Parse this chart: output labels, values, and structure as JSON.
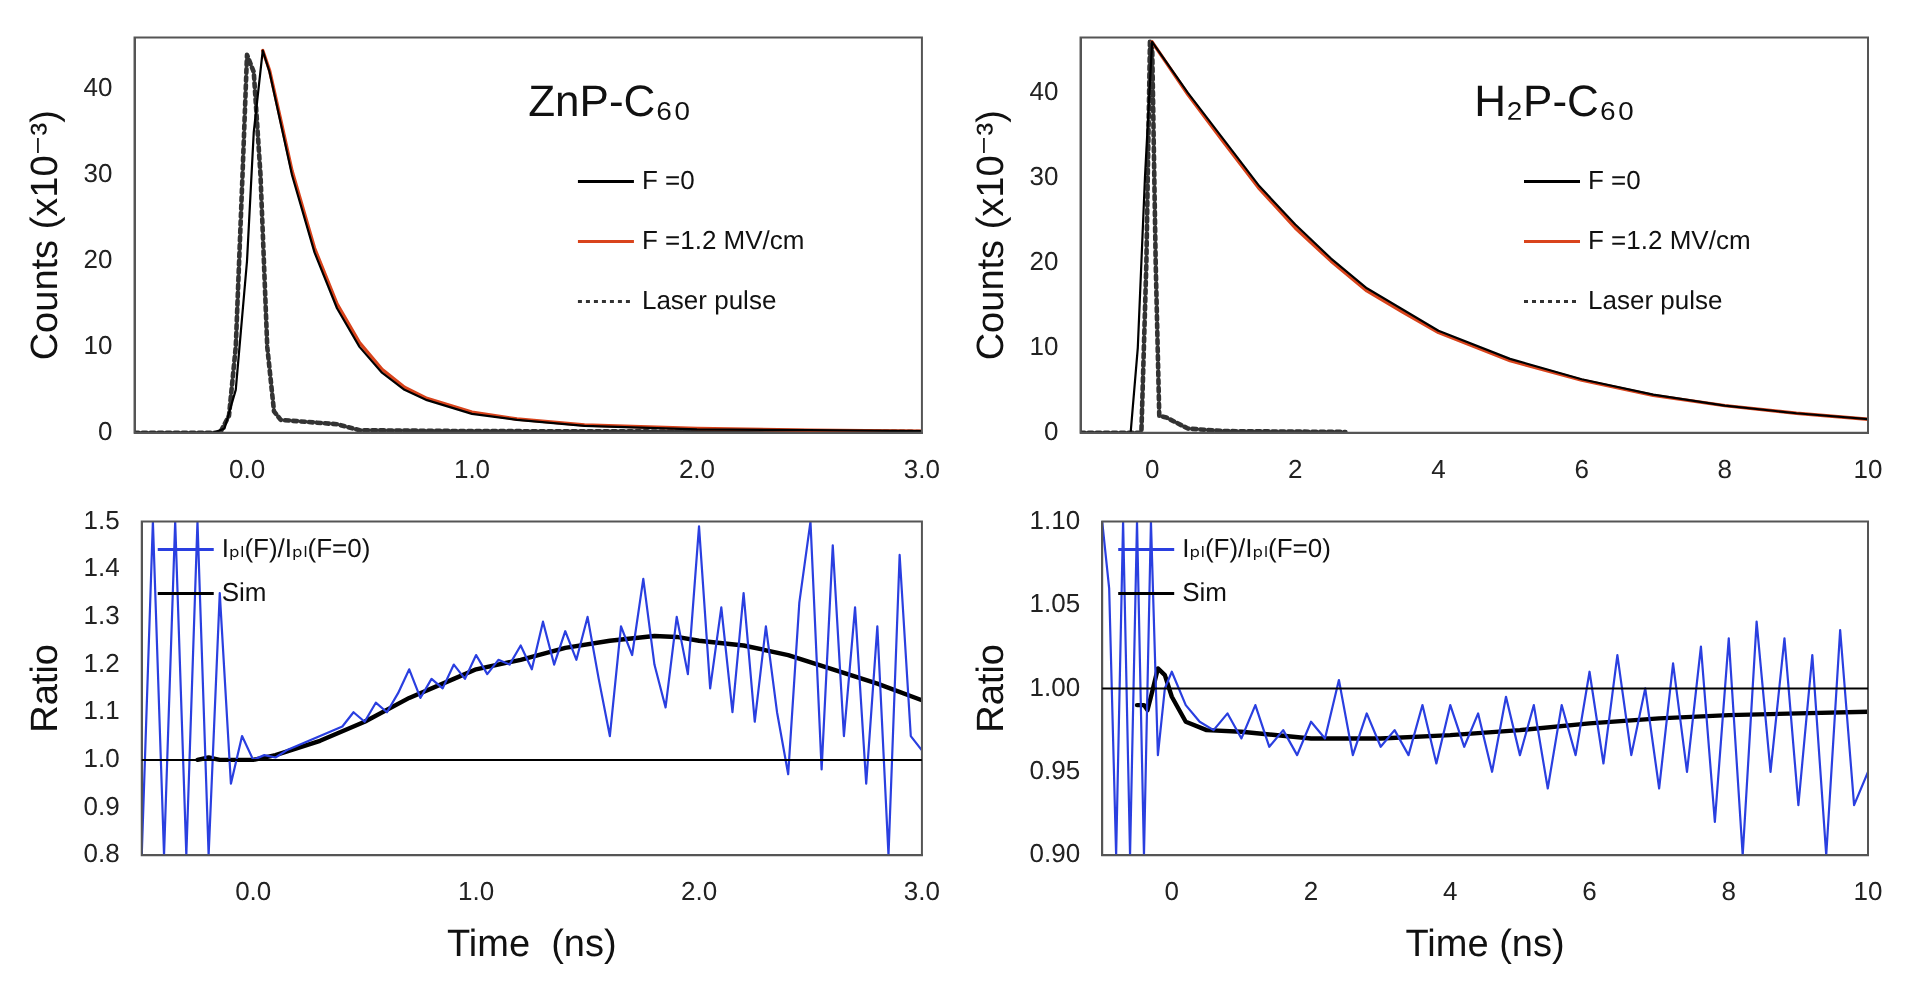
{
  "chart_data": [
    {
      "type": "line",
      "ylabel": "Counts (x10⁻³)",
      "annotations": [
        "ZnP-C₆₀"
      ],
      "xlim": [
        -0.5,
        3.0
      ],
      "xticks": [
        {
          "value": 0,
          "label": "0.0"
        },
        {
          "value": 1,
          "label": "1.0"
        },
        {
          "value": 2,
          "label": "2.0"
        },
        {
          "value": 3,
          "label": "3.0"
        }
      ],
      "ylim": [
        0,
        46
      ],
      "yticks": [
        0,
        10,
        20,
        30,
        40
      ],
      "legend": "right",
      "series": [
        {
          "name": "F =0",
          "color": "#000000",
          "line_style": "solid",
          "x": [
            -0.5,
            -0.15,
            -0.1,
            -0.05,
            0,
            0.03,
            0.07,
            0.1,
            0.15,
            0.2,
            0.3,
            0.4,
            0.5,
            0.6,
            0.7,
            0.8,
            1.0,
            1.2,
            1.5,
            2.0,
            2.5,
            3.0
          ],
          "values": [
            0,
            0,
            0.5,
            5,
            20,
            35,
            44.5,
            42,
            36,
            30,
            21,
            14.5,
            10,
            7,
            5,
            3.8,
            2.2,
            1.5,
            0.8,
            0.4,
            0.3,
            0.2
          ]
        },
        {
          "name": "F =1.2 MV/cm",
          "color": "#d9441c",
          "line_style": "solid",
          "x": [
            0.07,
            0.1,
            0.15,
            0.2,
            0.3,
            0.4,
            0.5,
            0.6,
            0.7,
            0.8,
            1.0,
            1.2,
            1.5,
            2.0,
            2.5,
            3.0
          ],
          "values": [
            44.5,
            42.2,
            36.4,
            30.5,
            21.5,
            15,
            10.5,
            7.4,
            5.3,
            4,
            2.4,
            1.6,
            0.9,
            0.5,
            0.3,
            0.2
          ]
        },
        {
          "name": "Laser pulse",
          "color": "#333333",
          "line_style": "dotted",
          "x": [
            -0.5,
            -0.12,
            -0.08,
            -0.05,
            -0.02,
            0,
            0.03,
            0.06,
            0.09,
            0.12,
            0.15,
            0.3,
            0.4,
            0.5,
            1.0,
            3.0
          ],
          "values": [
            0,
            0,
            2,
            10,
            30,
            44,
            42,
            30,
            10,
            2.5,
            1.5,
            1.2,
            1,
            0.3,
            0.2,
            0.1
          ]
        }
      ]
    },
    {
      "type": "line",
      "ylabel": "Counts (x10⁻³)",
      "annotations": [
        "H₂P-C₆₀"
      ],
      "xlim": [
        -1,
        10
      ],
      "xticks": [
        0,
        2,
        4,
        6,
        8,
        10
      ],
      "ylim": [
        0,
        46.5
      ],
      "yticks": [
        0,
        10,
        20,
        30,
        40
      ],
      "legend": "right",
      "series": [
        {
          "name": "F =0",
          "color": "#000000",
          "line_style": "solid",
          "x": [
            -1,
            -0.3,
            -0.2,
            -0.1,
            0,
            0.5,
            1,
            1.5,
            2,
            2.5,
            3,
            3.5,
            4,
            5,
            6,
            7,
            8,
            9,
            10
          ],
          "values": [
            0,
            0,
            10,
            30,
            46,
            40,
            34.5,
            29,
            24.5,
            20.5,
            17,
            14.5,
            12,
            8.7,
            6.3,
            4.5,
            3.2,
            2.3,
            1.6
          ]
        },
        {
          "name": "F =1.2 MV/cm",
          "color": "#d9441c",
          "line_style": "solid",
          "x": [
            0,
            0.5,
            1,
            1.5,
            2,
            2.5,
            3,
            3.5,
            4,
            5,
            6,
            7,
            8,
            9,
            10
          ],
          "values": [
            46,
            39.8,
            34.2,
            28.7,
            24.1,
            20.2,
            16.7,
            14.2,
            11.8,
            8.5,
            6.2,
            4.4,
            3.2,
            2.3,
            1.6
          ]
        },
        {
          "name": "Laser pulse",
          "color": "#333333",
          "line_style": "dotted",
          "x": [
            -1,
            -0.15,
            -0.08,
            -0.03,
            0,
            0.05,
            0.1,
            0.2,
            0.5,
            1,
            2.7
          ],
          "values": [
            0,
            0,
            20,
            46,
            46,
            20,
            2,
            1.8,
            0.5,
            0.2,
            0.1
          ]
        }
      ]
    },
    {
      "type": "line",
      "xlabel": "Time  (ns)",
      "ylabel": "Ratio",
      "xlim": [
        -0.5,
        3.0
      ],
      "xticks": [
        {
          "value": 0,
          "label": "0.0"
        },
        {
          "value": 1,
          "label": "1.0"
        },
        {
          "value": 2,
          "label": "2.0"
        },
        {
          "value": 3,
          "label": "3.0"
        }
      ],
      "ylim": [
        0.8,
        1.5
      ],
      "yticks": [
        {
          "value": 0.8,
          "label": "0.8"
        },
        {
          "value": 0.9,
          "label": "0.9"
        },
        {
          "value": 1,
          "label": "1.0"
        },
        {
          "value": 1.1,
          "label": "1.1"
        },
        {
          "value": 1.2,
          "label": "1.2"
        },
        {
          "value": 1.3,
          "label": "1.3"
        },
        {
          "value": 1.4,
          "label": "1.4"
        },
        {
          "value": 1.5,
          "label": "1.5"
        }
      ],
      "legend": "top left",
      "ref_lines": [
        {
          "axis": "y",
          "value": 1.0,
          "color": "#000000"
        }
      ],
      "series": [
        {
          "name": "Iₚₗ(F)/Iₚₗ(F=0)",
          "color": "#2a3fe0",
          "line_style": "solid",
          "x": [
            -0.5,
            -0.45,
            -0.4,
            -0.35,
            -0.3,
            -0.25,
            -0.2,
            -0.15,
            -0.1,
            -0.05,
            0,
            0.05,
            0.1,
            0.15,
            0.2,
            0.25,
            0.3,
            0.35,
            0.4,
            0.45,
            0.5,
            0.55,
            0.6,
            0.65,
            0.7,
            0.75,
            0.8,
            0.85,
            0.9,
            0.95,
            1.0,
            1.05,
            1.1,
            1.15,
            1.2,
            1.25,
            1.3,
            1.35,
            1.4,
            1.45,
            1.5,
            1.55,
            1.6,
            1.65,
            1.7,
            1.75,
            1.8,
            1.85,
            1.9,
            1.95,
            2.0,
            2.05,
            2.1,
            2.15,
            2.2,
            2.25,
            2.3,
            2.35,
            2.4,
            2.45,
            2.5,
            2.55,
            2.6,
            2.65,
            2.7,
            2.75,
            2.8,
            2.85,
            2.9,
            2.95,
            3.0
          ],
          "values": [
            0.8,
            1.5,
            0.8,
            1.5,
            0.8,
            1.5,
            0.8,
            1.35,
            0.95,
            1.05,
            1.0,
            1.01,
            1.005,
            1.02,
            1.03,
            1.04,
            1.05,
            1.06,
            1.07,
            1.1,
            1.08,
            1.12,
            1.1,
            1.14,
            1.19,
            1.13,
            1.17,
            1.15,
            1.2,
            1.17,
            1.22,
            1.18,
            1.21,
            1.2,
            1.24,
            1.19,
            1.29,
            1.2,
            1.27,
            1.21,
            1.3,
            1.17,
            1.05,
            1.28,
            1.22,
            1.38,
            1.2,
            1.11,
            1.3,
            1.18,
            1.49,
            1.15,
            1.32,
            1.1,
            1.35,
            1.08,
            1.28,
            1.1,
            0.97,
            1.33,
            1.5,
            0.98,
            1.45,
            1.05,
            1.32,
            0.95,
            1.28,
            0.8,
            1.43,
            1.05,
            1.02
          ]
        },
        {
          "name": "Sim",
          "color": "#000000",
          "line_style": "solid",
          "x": [
            -0.25,
            -0.2,
            -0.15,
            0,
            0.1,
            0.3,
            0.5,
            0.7,
            0.9,
            1.0,
            1.2,
            1.4,
            1.6,
            1.8,
            1.9,
            2.0,
            2.2,
            2.4,
            2.6,
            2.8,
            3.0
          ],
          "values": [
            1.0,
            1.005,
            1.0,
            1.0,
            1.01,
            1.04,
            1.08,
            1.13,
            1.17,
            1.19,
            1.21,
            1.235,
            1.25,
            1.26,
            1.258,
            1.25,
            1.24,
            1.22,
            1.19,
            1.16,
            1.125
          ]
        }
      ]
    },
    {
      "type": "line",
      "xlabel": "Time (ns)",
      "ylabel": "Ratio",
      "xlim": [
        -1,
        10
      ],
      "xticks": [
        0,
        2,
        4,
        6,
        8,
        10
      ],
      "ylim": [
        0.9,
        1.1
      ],
      "yticks": [
        {
          "value": 0.9,
          "label": "0.90"
        },
        {
          "value": 0.95,
          "label": "0.95"
        },
        {
          "value": 1,
          "label": "1.00"
        },
        {
          "value": 1.05,
          "label": "1.05"
        },
        {
          "value": 1.1,
          "label": "1.10"
        }
      ],
      "legend": "top left",
      "ref_lines": [
        {
          "axis": "y",
          "value": 1.0,
          "color": "#000000"
        }
      ],
      "series": [
        {
          "name": "Iₚₗ(F)/Iₚₗ(F=0)",
          "color": "#2a3fe0",
          "line_style": "solid",
          "x": [
            -1,
            -0.9,
            -0.8,
            -0.7,
            -0.6,
            -0.5,
            -0.4,
            -0.3,
            -0.2,
            -0.1,
            0,
            0.2,
            0.4,
            0.6,
            0.8,
            1.0,
            1.2,
            1.4,
            1.6,
            1.8,
            2.0,
            2.2,
            2.4,
            2.6,
            2.8,
            3.0,
            3.2,
            3.4,
            3.6,
            3.8,
            4.0,
            4.2,
            4.4,
            4.6,
            4.8,
            5.0,
            5.2,
            5.4,
            5.6,
            5.8,
            6.0,
            6.2,
            6.4,
            6.6,
            6.8,
            7.0,
            7.2,
            7.4,
            7.6,
            7.8,
            8.0,
            8.2,
            8.4,
            8.6,
            8.8,
            9.0,
            9.2,
            9.4,
            9.6,
            9.8,
            10.0
          ],
          "values": [
            1.1,
            1.06,
            0.9,
            1.1,
            0.9,
            1.1,
            0.9,
            1.1,
            0.96,
            1.0,
            1.01,
            0.99,
            0.98,
            0.975,
            0.985,
            0.97,
            0.99,
            0.965,
            0.975,
            0.96,
            0.98,
            0.97,
            1.005,
            0.96,
            0.985,
            0.965,
            0.975,
            0.96,
            0.99,
            0.955,
            0.99,
            0.965,
            0.985,
            0.95,
            0.995,
            0.96,
            0.99,
            0.94,
            0.99,
            0.96,
            1.01,
            0.955,
            1.02,
            0.96,
            1.0,
            0.94,
            1.015,
            0.95,
            1.025,
            0.92,
            1.03,
            0.9,
            1.04,
            0.95,
            1.03,
            0.93,
            1.02,
            0.9,
            1.035,
            0.93,
            0.95
          ]
        },
        {
          "name": "Sim",
          "color": "#000000",
          "line_style": "solid",
          "x": [
            -0.5,
            -0.4,
            -0.35,
            -0.3,
            -0.2,
            -0.1,
            0,
            0.2,
            0.5,
            1,
            2,
            3,
            4,
            5,
            6,
            7,
            8,
            9,
            10
          ],
          "values": [
            0.99,
            0.99,
            0.987,
            0.995,
            1.012,
            1.008,
            0.995,
            0.98,
            0.975,
            0.974,
            0.97,
            0.97,
            0.972,
            0.975,
            0.979,
            0.982,
            0.984,
            0.985,
            0.986
          ]
        }
      ]
    }
  ]
}
